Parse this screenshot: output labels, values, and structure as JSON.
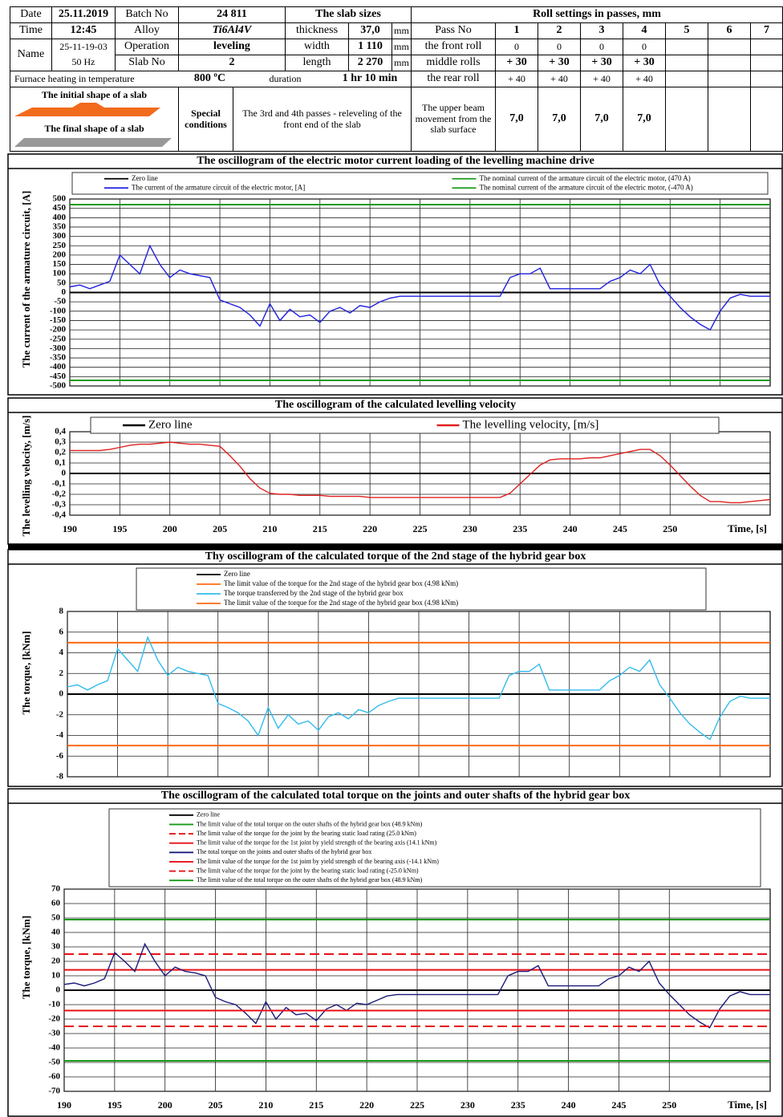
{
  "header": {
    "date_label": "Date",
    "date": "25.11.2019",
    "batch_label": "Batch No",
    "batch": "24 811",
    "slab_sizes_label": "The slab sizes",
    "roll_settings_label": "Roll settings in passes, mm",
    "time_label": "Time",
    "time": "12:45",
    "alloy_label": "Alloy",
    "alloy": "Ti6Al4V",
    "thickness_label": "thickness",
    "thickness": "37,0",
    "unit": "mm",
    "pass_no_label": "Pass No",
    "passes": [
      "1",
      "2",
      "3",
      "4",
      "5",
      "6",
      "7"
    ],
    "name_label": "Name",
    "name": [
      "25-11-19-03",
      "50 Hz"
    ],
    "operation_label": "Operation",
    "operation": "leveling",
    "width_label": "width",
    "width": "1 110",
    "front_roll_label": "the front roll",
    "front_roll": [
      "0",
      "0",
      "0",
      "0"
    ],
    "slab_no_label": "Slab No",
    "slab_no": "2",
    "length_label": "length",
    "length": "2 270",
    "middle_rolls_label": "middle rolls",
    "middle_rolls": [
      "+ 30",
      "+ 30",
      "+ 30",
      "+ 30"
    ],
    "furnace_label": "Furnace heating in temperature",
    "temperature": "800 ºC",
    "duration_label": "duration",
    "duration": "1 hr 10 min",
    "rear_roll_label": "the rear roll",
    "rear_roll": [
      "+ 40",
      "+ 40",
      "+ 40",
      "+ 40"
    ],
    "initial_shape": "The initial shape of a slab",
    "final_shape": "The final shape of a slab",
    "special_label": "Special conditions",
    "special": "The 3rd and 4th passes - releveling of the front end of the slab",
    "beam_label": "The upper beam movement from the slab surface",
    "beam": [
      "7,0",
      "7,0",
      "7,0",
      "7,0"
    ]
  },
  "chart_data": [
    {
      "type": "line",
      "title": "The oscillogram of the electric motor current loading of the levelling machine drive",
      "ylabel": "The current of the armature circuit, [A]",
      "xlim": [
        190,
        260
      ],
      "ylim": [
        -500,
        500
      ],
      "yticks": [
        -500,
        -450,
        -400,
        -350,
        -300,
        -250,
        -200,
        -150,
        -100,
        -50,
        0,
        50,
        100,
        150,
        200,
        250,
        300,
        350,
        400,
        450,
        500
      ],
      "xticks": [
        190,
        195,
        200,
        205,
        210,
        215,
        220,
        225,
        230,
        235,
        240,
        245,
        250,
        255
      ],
      "show_xtick_labels": false,
      "grid": true,
      "legend_columns": 2,
      "x": [
        190,
        191,
        192,
        193,
        194,
        195,
        196,
        197,
        198,
        199,
        200,
        201,
        202,
        203,
        204,
        205,
        206,
        207,
        208,
        209,
        210,
        211,
        212,
        213,
        214,
        215,
        216,
        217,
        218,
        219,
        220,
        221,
        222,
        223,
        224,
        225,
        226,
        227,
        228,
        229,
        230,
        231,
        232,
        233,
        234,
        235,
        236,
        237,
        238,
        239,
        240,
        241,
        242,
        243,
        244,
        245,
        246,
        247,
        248,
        249,
        250,
        251,
        252,
        253,
        254,
        255,
        256,
        257,
        258,
        259,
        260
      ],
      "series": [
        {
          "name": "Zero line",
          "color": "#000000",
          "level": 0
        },
        {
          "name": "The current of the armature circuit of the electric motor, [A]",
          "color": "#1f1fe0",
          "values": [
            30,
            40,
            20,
            40,
            60,
            200,
            150,
            100,
            250,
            150,
            80,
            120,
            100,
            90,
            80,
            -40,
            -60,
            -80,
            -120,
            -180,
            -60,
            -150,
            -90,
            -130,
            -120,
            -160,
            -100,
            -80,
            -110,
            -70,
            -80,
            -50,
            -30,
            -20,
            -20,
            -20,
            -20,
            -20,
            -20,
            -20,
            -20,
            -20,
            -20,
            -20,
            80,
            100,
            100,
            130,
            20,
            20,
            20,
            20,
            20,
            20,
            60,
            80,
            120,
            100,
            150,
            40,
            -20,
            -80,
            -130,
            -170,
            -200,
            -100,
            -30,
            -10,
            -20,
            -20,
            -20
          ]
        },
        {
          "name": "The nominal current of the armature circuit of the electric motor, (470 A)",
          "color": "#1a9a1a",
          "level": 470
        },
        {
          "name": "The nominal current of the armature circuit of the electric motor, (-470 A)",
          "color": "#1a9a1a",
          "level": -470
        }
      ]
    },
    {
      "type": "line",
      "title": "The oscillogram of the calculated levelling velocity",
      "ylabel": "The levelling velocity, [m/s]",
      "xlabel": "Time, [s]",
      "xlim": [
        190,
        260
      ],
      "ylim": [
        -0.4,
        0.4
      ],
      "yticks": [
        {
          "value": -0.4,
          "label": "-0,4"
        },
        {
          "value": -0.3,
          "label": "-0,3"
        },
        {
          "value": -0.2,
          "label": "-0,2"
        },
        {
          "value": -0.1,
          "label": "-0,1"
        },
        0,
        {
          "value": 0.1,
          "label": "0,1"
        },
        {
          "value": 0.2,
          "label": "0,2"
        },
        {
          "value": 0.3,
          "label": "0,3"
        },
        {
          "value": 0.4,
          "label": "0,4"
        }
      ],
      "xticks": [
        190,
        195,
        200,
        205,
        210,
        215,
        220,
        225,
        230,
        235,
        240,
        245,
        250
      ],
      "show_xtick_labels": true,
      "grid": true,
      "legend_columns": 2,
      "x": [
        190,
        191,
        192,
        193,
        194,
        195,
        196,
        197,
        198,
        199,
        200,
        201,
        202,
        203,
        204,
        205,
        206,
        207,
        208,
        209,
        210,
        211,
        212,
        213,
        214,
        215,
        216,
        217,
        218,
        219,
        220,
        221,
        222,
        223,
        224,
        225,
        226,
        227,
        228,
        229,
        230,
        231,
        232,
        233,
        234,
        235,
        236,
        237,
        238,
        239,
        240,
        241,
        242,
        243,
        244,
        245,
        246,
        247,
        248,
        249,
        250,
        251,
        252,
        253,
        254,
        255,
        256,
        257,
        258,
        259,
        260
      ],
      "series": [
        {
          "name": "Zero line",
          "color": "#000000",
          "level": 0
        },
        {
          "name": "The levelling velocity, [m/s]",
          "color": "#e02020",
          "values": [
            0.22,
            0.22,
            0.22,
            0.22,
            0.23,
            0.25,
            0.27,
            0.28,
            0.28,
            0.29,
            0.3,
            0.29,
            0.28,
            0.28,
            0.27,
            0.26,
            0.17,
            0.07,
            -0.05,
            -0.14,
            -0.19,
            -0.2,
            -0.2,
            -0.21,
            -0.21,
            -0.21,
            -0.22,
            -0.22,
            -0.22,
            -0.22,
            -0.23,
            -0.23,
            -0.23,
            -0.23,
            -0.23,
            -0.23,
            -0.23,
            -0.23,
            -0.23,
            -0.23,
            -0.23,
            -0.23,
            -0.23,
            -0.23,
            -0.19,
            -0.1,
            -0.01,
            0.08,
            0.13,
            0.14,
            0.14,
            0.14,
            0.15,
            0.15,
            0.17,
            0.19,
            0.21,
            0.23,
            0.23,
            0.17,
            0.08,
            -0.02,
            -0.12,
            -0.21,
            -0.27,
            -0.27,
            -0.28,
            -0.28,
            -0.27,
            -0.26,
            -0.25
          ]
        }
      ]
    },
    {
      "type": "line",
      "title": "Thy oscillogram of the calculated torque of the 2nd stage of the hybrid gear box",
      "ylabel": "The torque, [kNm]",
      "xlim": [
        190,
        260
      ],
      "ylim": [
        -8,
        8
      ],
      "yticks": [
        -8,
        -6,
        -4,
        -2,
        0,
        2,
        4,
        6,
        8
      ],
      "xticks": [
        190,
        195,
        200,
        205,
        210,
        215,
        220,
        225,
        230,
        235,
        240,
        245,
        250,
        255
      ],
      "show_xtick_labels": false,
      "grid": true,
      "legend_columns": 1,
      "x": [
        190,
        191,
        192,
        193,
        194,
        195,
        196,
        197,
        198,
        199,
        200,
        201,
        202,
        203,
        204,
        205,
        206,
        207,
        208,
        209,
        210,
        211,
        212,
        213,
        214,
        215,
        216,
        217,
        218,
        219,
        220,
        221,
        222,
        223,
        224,
        225,
        226,
        227,
        228,
        229,
        230,
        231,
        232,
        233,
        234,
        235,
        236,
        237,
        238,
        239,
        240,
        241,
        242,
        243,
        244,
        245,
        246,
        247,
        248,
        249,
        250,
        251,
        252,
        253,
        254,
        255,
        256,
        257,
        258,
        259,
        260
      ],
      "series": [
        {
          "name": "Zero line",
          "color": "#000000",
          "level": 0
        },
        {
          "name": "The limit value of the torque for the 2nd stage of the hybrid gear box (4.98 kNm)",
          "color": "#ff6a13",
          "level": 4.98
        },
        {
          "name": "The torque transferred by the 2nd stage of the hybrid gear box",
          "color": "#33bbee",
          "values": [
            0.7,
            0.9,
            0.4,
            0.9,
            1.3,
            4.4,
            3.3,
            2.2,
            5.5,
            3.3,
            1.8,
            2.6,
            2.2,
            2,
            1.8,
            -0.9,
            -1.3,
            -1.8,
            -2.6,
            -4,
            -1.3,
            -3.3,
            -2,
            -2.9,
            -2.6,
            -3.5,
            -2.2,
            -1.8,
            -2.4,
            -1.5,
            -1.8,
            -1.1,
            -0.7,
            -0.4,
            -0.4,
            -0.4,
            -0.4,
            -0.4,
            -0.4,
            -0.4,
            -0.4,
            -0.4,
            -0.4,
            -0.4,
            1.8,
            2.2,
            2.2,
            2.9,
            0.4,
            0.4,
            0.4,
            0.4,
            0.4,
            0.4,
            1.3,
            1.8,
            2.6,
            2.2,
            3.3,
            0.9,
            -0.4,
            -1.8,
            -2.9,
            -3.7,
            -4.4,
            -2.2,
            -0.7,
            -0.2,
            -0.4,
            -0.4,
            -0.4
          ]
        },
        {
          "name": "The limit value of the torque for the 2nd stage of the hybrid gear box (4.98 kNm)",
          "color": "#ff6a13",
          "level": -4.98
        }
      ]
    },
    {
      "type": "line",
      "title": "The oscillogram of the calculated total torque on the joints and outer shafts of the hybrid gear box",
      "ylabel": "The torque, [kNm]",
      "xlabel": "Time, [s]",
      "xlim": [
        190,
        260
      ],
      "ylim": [
        -70,
        70
      ],
      "yticks": [
        -70,
        -60,
        -50,
        -40,
        -30,
        -20,
        -10,
        0,
        10,
        20,
        30,
        40,
        50,
        60,
        70
      ],
      "xticks": [
        190,
        195,
        200,
        205,
        210,
        215,
        220,
        225,
        230,
        235,
        240,
        245,
        250
      ],
      "show_xtick_labels": true,
      "grid": true,
      "legend_columns": 1,
      "x": [
        190,
        191,
        192,
        193,
        194,
        195,
        196,
        197,
        198,
        199,
        200,
        201,
        202,
        203,
        204,
        205,
        206,
        207,
        208,
        209,
        210,
        211,
        212,
        213,
        214,
        215,
        216,
        217,
        218,
        219,
        220,
        221,
        222,
        223,
        224,
        225,
        226,
        227,
        228,
        229,
        230,
        231,
        232,
        233,
        234,
        235,
        236,
        237,
        238,
        239,
        240,
        241,
        242,
        243,
        244,
        245,
        246,
        247,
        248,
        249,
        250,
        251,
        252,
        253,
        254,
        255,
        256,
        257,
        258,
        259,
        260
      ],
      "series": [
        {
          "name": "Zero line",
          "color": "#000000",
          "level": 0
        },
        {
          "name": "The limit value of the total torque on the outer shafts of the hybrid gear box (48.9 kNm)",
          "color": "#1a9a1a",
          "level": 48.9
        },
        {
          "name": "The limit value of the torque for the joint by the bearing static load rating (25.0 kNm)",
          "color": "#e8121a",
          "level": 25,
          "dash": true
        },
        {
          "name": "The limit value of the torque for the 1st joint by yield strength of the bearing axis (14.1 kNm)",
          "color": "#e8121a",
          "level": 14.1
        },
        {
          "name": "The total torque on the joints and outer shafts of the hybrid gear box",
          "color": "#1a1a7a",
          "values": [
            4,
            5,
            3,
            5,
            8,
            26,
            20,
            13,
            32,
            20,
            10,
            16,
            13,
            12,
            10,
            -5,
            -8,
            -10,
            -16,
            -23,
            -8,
            -20,
            -12,
            -17,
            -16,
            -21,
            -13,
            -10,
            -14,
            -9,
            -10,
            -7,
            -4,
            -3,
            -3,
            -3,
            -3,
            -3,
            -3,
            -3,
            -3,
            -3,
            -3,
            -3,
            10,
            13,
            13,
            17,
            3,
            3,
            3,
            3,
            3,
            3,
            8,
            10,
            16,
            13,
            20,
            5,
            -3,
            -10,
            -17,
            -22,
            -26,
            -13,
            -4,
            -1,
            -3,
            -3,
            -3
          ]
        },
        {
          "name": "The limit value of the torque for the 1st joint by yield strength of the bearing axis (-14.1 kNm)",
          "color": "#e8121a",
          "level": -14.1
        },
        {
          "name": "The limit value of the torque for the joint by the bearing static load rating (-25.0 kNm)",
          "color": "#e8121a",
          "level": -25,
          "dash": true
        },
        {
          "name": "The limit value of the total torque on the outer shafts of the hybrid gear box (48.9 kNm)",
          "color": "#1a9a1a",
          "level": -48.9
        }
      ]
    }
  ]
}
